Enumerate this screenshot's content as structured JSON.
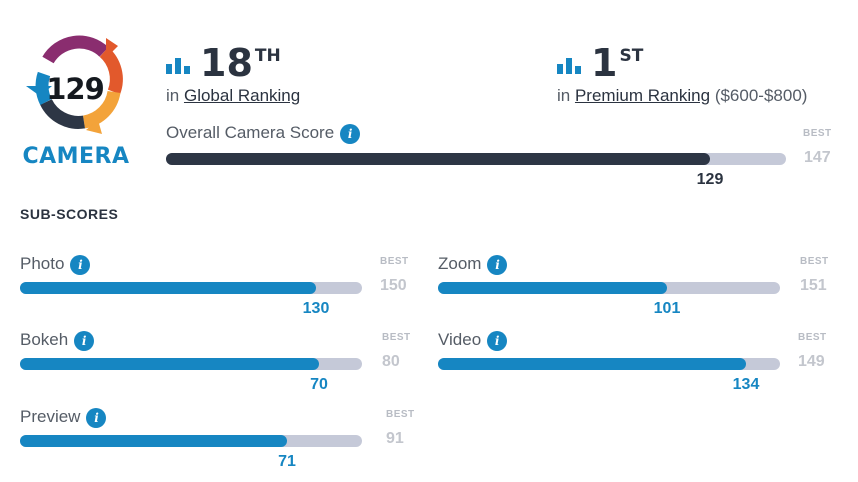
{
  "logo": {
    "score": "129",
    "label": "CAMERA"
  },
  "global_rank": {
    "number": "18",
    "suffix": "TH",
    "prefix": "in",
    "link": "Global Ranking"
  },
  "premium_rank": {
    "number": "1",
    "suffix": "ST",
    "prefix": "in",
    "link": "Premium Ranking",
    "range": "($600-$800)"
  },
  "overall": {
    "label": "Overall Camera Score",
    "best_label": "BEST",
    "best": 147,
    "score": 129
  },
  "subscores_heading": "SUB-SCORES",
  "subscores": [
    {
      "label": "Photo",
      "best_label": "BEST",
      "best": 150,
      "score": 130
    },
    {
      "label": "Zoom",
      "best_label": "BEST",
      "best": 151,
      "score": 101
    },
    {
      "label": "Bokeh",
      "best_label": "BEST",
      "best": 80,
      "score": 70
    },
    {
      "label": "Video",
      "best_label": "BEST",
      "best": 149,
      "score": 134
    },
    {
      "label": "Preview",
      "best_label": "BEST",
      "best": 91,
      "score": 71
    }
  ],
  "colors": {
    "accent": "#1686c2",
    "dark_fill": "#2d3645",
    "track": "#c5c9d8"
  },
  "icons": {
    "rank": "bar-chart-icon",
    "info": "info-icon"
  }
}
